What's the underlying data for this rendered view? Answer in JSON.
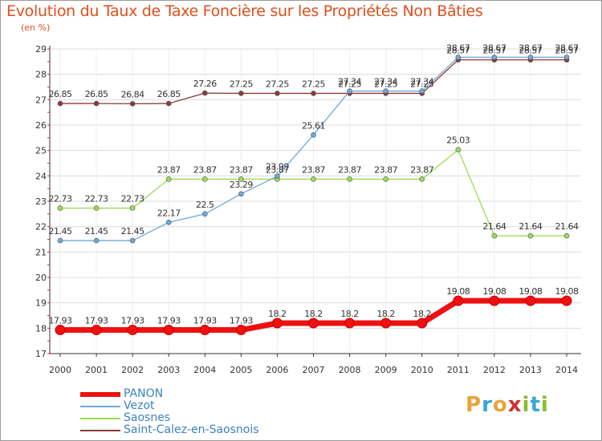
{
  "chart_data": {
    "type": "line",
    "title": "Evolution du Taux de Taxe Foncière sur les Propriétés Non Bâties",
    "ylabel": "(en %)",
    "xlabel": "",
    "ylim": [
      17,
      29
    ],
    "yticks": [
      "17",
      "18",
      "19",
      "20",
      "21",
      "22",
      "23",
      "24",
      "25",
      "26",
      "27",
      "28",
      "29"
    ],
    "categories": [
      "2000",
      "2001",
      "2002",
      "2003",
      "2004",
      "2005",
      "2006",
      "2007",
      "2008",
      "2009",
      "2010",
      "2011",
      "2012",
      "2013",
      "2014"
    ],
    "series": [
      {
        "name": "PANON",
        "color": "#ee1111",
        "values": [
          17.93,
          17.93,
          17.93,
          17.93,
          17.93,
          17.93,
          18.2,
          18.2,
          18.2,
          18.2,
          18.2,
          19.08,
          19.08,
          19.08,
          19.08
        ],
        "labels": [
          "17.93",
          "17.93",
          "17.93",
          "17.93",
          "17.93",
          "17.93",
          "18.2",
          "18.2",
          "18.2",
          "18.2",
          "18.2",
          "19.08",
          "19.08",
          "19.08",
          "19.08"
        ]
      },
      {
        "name": "Vezot",
        "color": "#6fa8dc",
        "values": [
          21.45,
          21.45,
          21.45,
          22.17,
          22.5,
          23.29,
          23.99,
          25.61,
          27.34,
          27.34,
          27.34,
          28.67,
          28.67,
          28.67,
          28.67
        ],
        "labels": [
          "21.45",
          "21.45",
          "21.45",
          "22.17",
          "22.5",
          "23.29",
          "23.99",
          "25.61",
          "27.34",
          "27.34",
          "27.34",
          "28.67",
          "28.67",
          "28.67",
          "28.67"
        ]
      },
      {
        "name": "Saosnes",
        "color": "#99dd55",
        "values": [
          22.73,
          22.73,
          22.73,
          23.87,
          23.87,
          23.87,
          23.87,
          23.87,
          23.87,
          23.87,
          23.87,
          25.03,
          21.64,
          21.64,
          21.64
        ],
        "labels": [
          "22.73",
          "22.73",
          "22.73",
          "23.87",
          "23.87",
          "23.87",
          "23.87",
          "23.87",
          "23.87",
          "23.87",
          "23.87",
          "25.03",
          "21.64",
          "21.64",
          "21.64"
        ]
      },
      {
        "name": "Saint-Calez-en-Saosnois",
        "color": "#8b3a3a",
        "values": [
          26.85,
          26.85,
          26.84,
          26.85,
          27.26,
          27.25,
          27.25,
          27.25,
          27.25,
          27.25,
          27.25,
          28.57,
          28.57,
          28.57,
          28.57
        ],
        "labels": [
          "26.85",
          "26.85",
          "26.84",
          "26.85",
          "27.26",
          "27.25",
          "27.25",
          "27.25",
          "27.25",
          "27.25",
          "27.25",
          "28.57",
          "28.57",
          "28.57",
          "28.57"
        ]
      }
    ],
    "legend": [
      "PANON",
      "Vezot",
      "Saosnes",
      "Saint-Calez-en-Saosnois"
    ],
    "legend_position": "bottom-left"
  },
  "brand": {
    "letters": [
      "P",
      "r",
      "o",
      "x",
      "i",
      "t",
      "i"
    ],
    "colors": [
      "#e8a33a",
      "#3aa6d8",
      "#e8a33a",
      "#cc3333",
      "#88bb33",
      "#3aa6d8",
      "#88bb33"
    ]
  }
}
